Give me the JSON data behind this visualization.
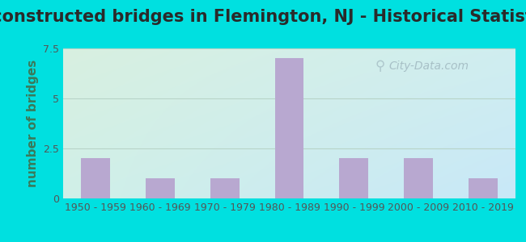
{
  "title": "Reconstructed bridges in Flemington, NJ - Historical Statistics",
  "categories": [
    "1950 - 1959",
    "1960 - 1969",
    "1970 - 1979",
    "1980 - 1989",
    "1990 - 1999",
    "2000 - 2009",
    "2010 - 2019"
  ],
  "values": [
    2,
    1,
    1,
    7,
    2,
    2,
    1
  ],
  "bar_color": "#b8a8d0",
  "ylabel": "number of bridges",
  "ylim": [
    0,
    7.5
  ],
  "yticks": [
    0,
    2.5,
    5,
    7.5
  ],
  "background_outer": "#00e0e0",
  "background_inner_topleft": "#d8f0e0",
  "background_inner_bottomright": "#c8e8f0",
  "grid_color": "#b8d4c8",
  "title_fontsize": 15,
  "axis_label_fontsize": 11,
  "tick_fontsize": 9,
  "watermark_text": "City-Data.com",
  "watermark_color": "#a0b8c0",
  "title_color": "#2a2a2a",
  "tick_label_color": "#555555",
  "ylabel_color": "#3a7a5a"
}
